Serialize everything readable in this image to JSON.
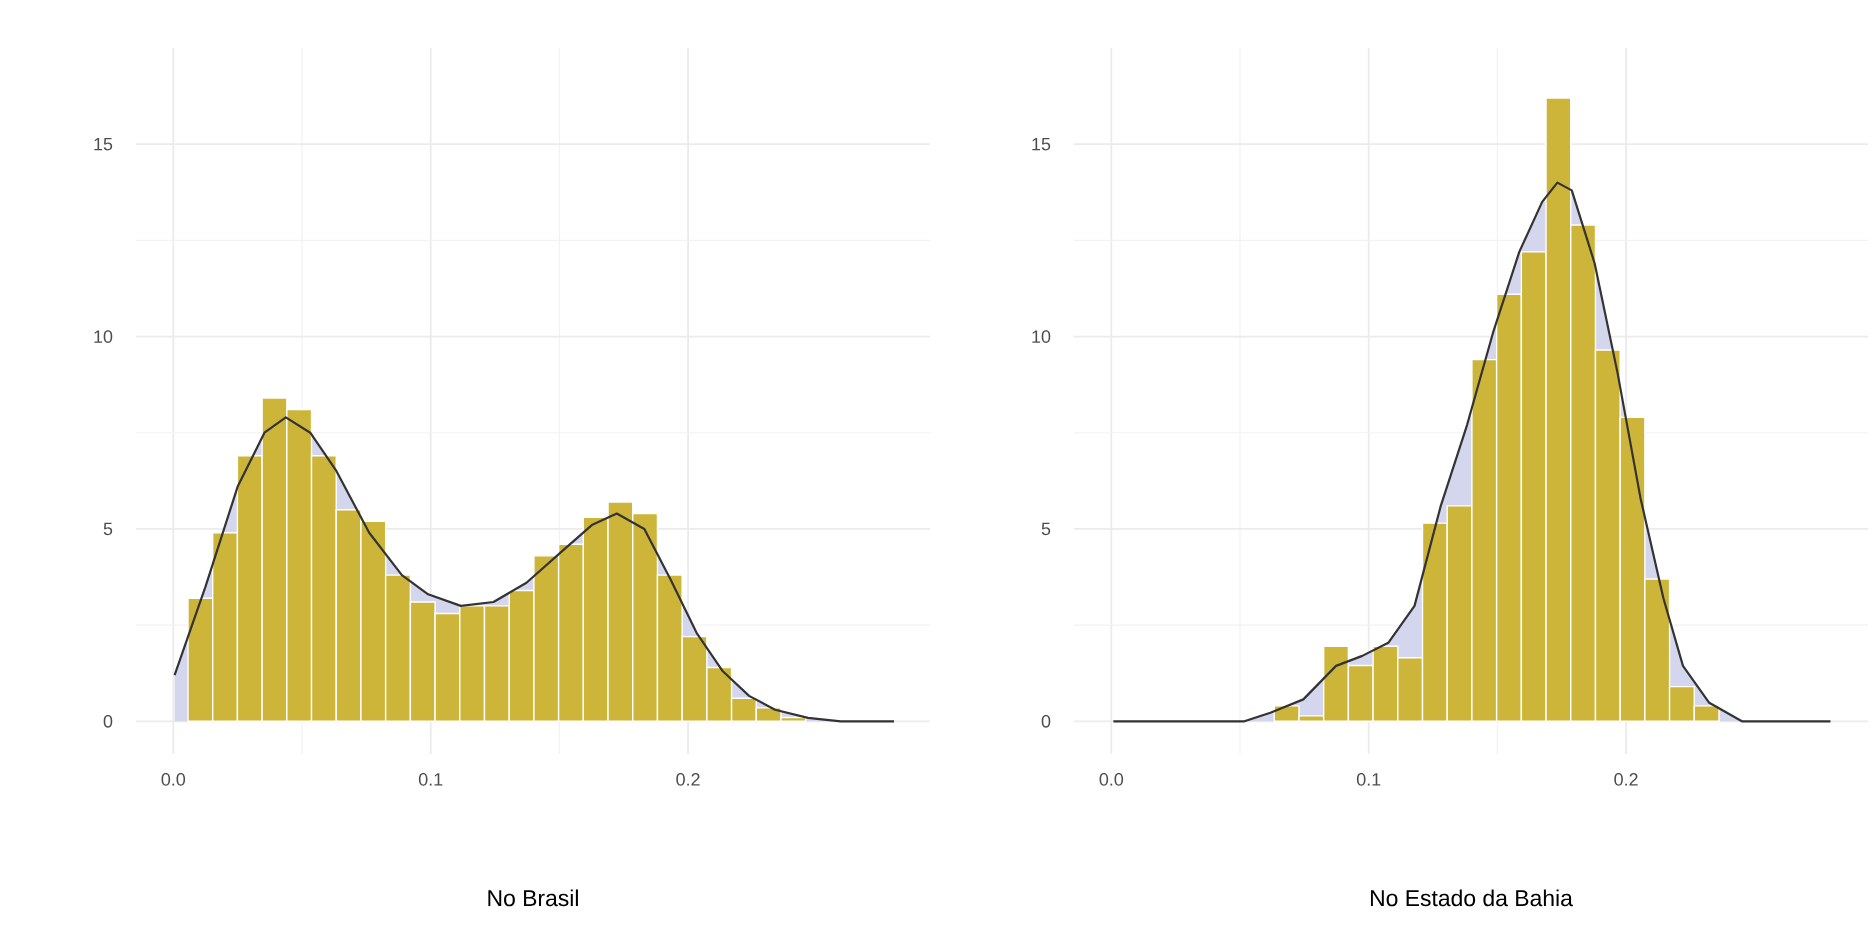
{
  "chart_data": [
    {
      "type": "histogram",
      "xlabel": "No Brasil",
      "bins": [
        0.0057,
        0.0153,
        0.0249,
        0.0345,
        0.0441,
        0.0537,
        0.0633,
        0.0729,
        0.0825,
        0.0921,
        0.1017,
        0.1113,
        0.1209,
        0.1305,
        0.1401,
        0.1497,
        0.1593,
        0.1689,
        0.1785,
        0.1881,
        0.1977,
        0.2073,
        0.2169,
        0.2265,
        0.2361,
        0.2457
      ],
      "values": [
        3.2,
        4.9,
        6.9,
        8.4,
        8.1,
        6.9,
        5.5,
        5.2,
        3.8,
        3.1,
        2.8,
        3.0,
        3.0,
        3.4,
        4.3,
        4.6,
        5.3,
        5.7,
        5.4,
        3.8,
        2.2,
        1.4,
        0.6,
        0.35,
        0.1
      ],
      "color": "#cdb53a",
      "series": [
        {
          "type": "area",
          "color": "#d3d6ec",
          "x": [
            0.0005,
            0.0125,
            0.025,
            0.0354,
            0.0437,
            0.0532,
            0.0634,
            0.0761,
            0.0888,
            0.099,
            0.1117,
            0.1244,
            0.1372,
            0.1524,
            0.1626,
            0.1723,
            0.183,
            0.1931,
            0.2033,
            0.2135,
            0.2237,
            0.2338,
            0.2466,
            0.2593,
            0.28
          ],
          "values": [
            1.2,
            3.5,
            6.1,
            7.5,
            7.9,
            7.5,
            6.5,
            4.9,
            3.8,
            3.3,
            3.0,
            3.1,
            3.6,
            4.5,
            5.1,
            5.4,
            5.0,
            3.7,
            2.3,
            1.3,
            0.66,
            0.3,
            0.09,
            0,
            0
          ]
        }
      ],
      "xlim": [
        -0.0145,
        0.294
      ],
      "ylim": [
        -0.85,
        17.5
      ],
      "xticks": [
        {
          "value": 0,
          "label": "0.0"
        },
        {
          "value": 0.1,
          "label": "0.1"
        },
        {
          "value": 0.2,
          "label": "0.2"
        }
      ],
      "yticks": [
        0,
        5,
        10,
        15
      ],
      "grid": true
    },
    {
      "type": "histogram",
      "xlabel": "No Estado da Bahia",
      "bins": [
        0.0633,
        0.0729,
        0.0825,
        0.0921,
        0.1017,
        0.1113,
        0.1209,
        0.1305,
        0.1401,
        0.1497,
        0.1593,
        0.1689,
        0.1785,
        0.1881,
        0.1977,
        0.2073,
        0.2169,
        0.2265,
        0.2361
      ],
      "values": [
        0.4,
        0.14,
        1.95,
        1.45,
        1.95,
        1.65,
        5.15,
        5.6,
        9.4,
        11.1,
        12.2,
        16.2,
        12.9,
        9.65,
        7.9,
        3.7,
        0.9,
        0.4
      ],
      "color": "#cdb53a",
      "series": [
        {
          "type": "area",
          "color": "#d3d6ec",
          "x": [
            0.0008,
            0.0517,
            0.0618,
            0.0746,
            0.0873,
            0.0975,
            0.1076,
            0.1178,
            0.128,
            0.1382,
            0.1483,
            0.1585,
            0.1674,
            0.1733,
            0.1789,
            0.1878,
            0.1967,
            0.2056,
            0.2145,
            0.2221,
            0.2323,
            0.245,
            0.2794
          ],
          "values": [
            0,
            0,
            0.22,
            0.57,
            1.44,
            1.7,
            2.04,
            3.0,
            5.6,
            7.7,
            10.1,
            12.2,
            13.5,
            14.0,
            13.8,
            11.9,
            9.05,
            5.8,
            3.2,
            1.44,
            0.48,
            0,
            0
          ]
        }
      ],
      "xlim": [
        -0.0145,
        0.294
      ],
      "ylim": [
        -0.85,
        17.5
      ],
      "xticks": [
        {
          "value": 0,
          "label": "0.0"
        },
        {
          "value": 0.1,
          "label": "0.1"
        },
        {
          "value": 0.2,
          "label": "0.2"
        }
      ],
      "yticks": [
        0,
        5,
        10,
        15
      ],
      "grid": true
    }
  ]
}
